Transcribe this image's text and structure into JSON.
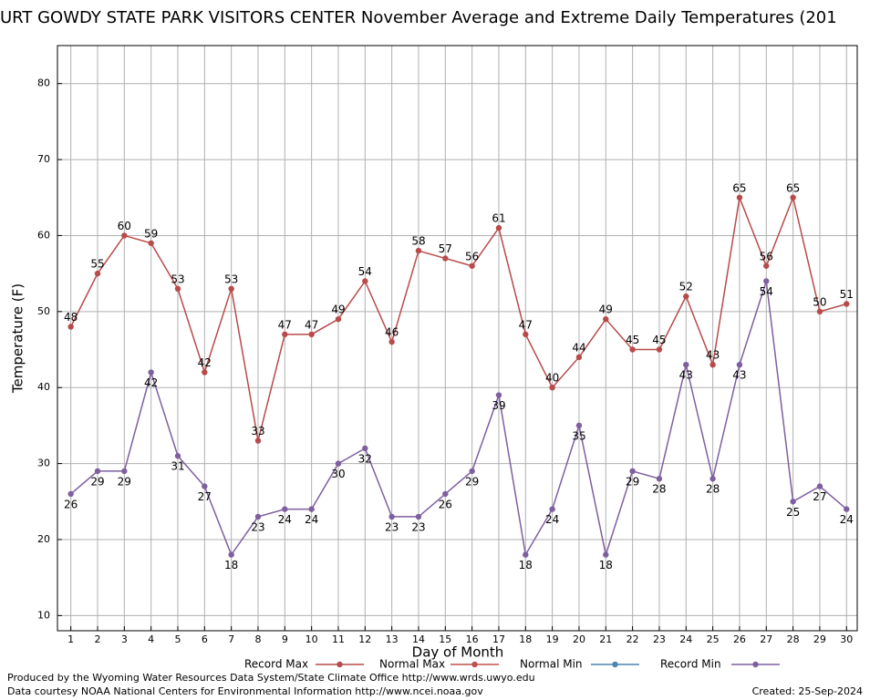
{
  "chart_data": {
    "type": "line",
    "title": "URT GOWDY STATE PARK VISITORS CENTER November Average and Extreme Daily Temperatures (201",
    "x_label": "Day of Month",
    "y_label": "Temperature (F)",
    "x": [
      1,
      2,
      3,
      4,
      5,
      6,
      7,
      8,
      9,
      10,
      11,
      12,
      13,
      14,
      15,
      16,
      17,
      18,
      19,
      20,
      21,
      22,
      23,
      24,
      25,
      26,
      27,
      28,
      29,
      30
    ],
    "xlim": [
      0.5,
      30.4
    ],
    "xticks": [
      1,
      2,
      3,
      4,
      5,
      6,
      7,
      8,
      9,
      10,
      11,
      12,
      13,
      14,
      15,
      16,
      17,
      18,
      19,
      20,
      21,
      22,
      23,
      24,
      25,
      26,
      27,
      28,
      29,
      30
    ],
    "ylim": [
      8,
      85
    ],
    "yticks": [
      10,
      20,
      30,
      40,
      50,
      60,
      70,
      80
    ],
    "grid": true,
    "series": [
      {
        "name": "Record Max",
        "color": "#b94a4a",
        "values": [
          48,
          55,
          60,
          59,
          53,
          42,
          53,
          33,
          47,
          47,
          49,
          54,
          46,
          58,
          57,
          56,
          61,
          47,
          40,
          44,
          49,
          45,
          45,
          52,
          43,
          65,
          56,
          65,
          50,
          51
        ]
      },
      {
        "name": "Normal Max",
        "color": "#c0504d",
        "values": [
          null,
          null,
          null,
          null,
          null,
          null,
          null,
          null,
          null,
          null,
          null,
          null,
          null,
          null,
          null,
          null,
          null,
          null,
          null,
          null,
          null,
          null,
          null,
          null,
          null,
          null,
          null,
          null,
          null,
          null
        ]
      },
      {
        "name": "Normal Min",
        "color": "#4a86b0",
        "values": [
          null,
          null,
          null,
          null,
          null,
          null,
          null,
          null,
          null,
          null,
          null,
          null,
          null,
          null,
          null,
          null,
          null,
          null,
          null,
          null,
          null,
          null,
          null,
          null,
          null,
          null,
          null,
          null,
          null,
          null
        ]
      },
      {
        "name": "Record Min",
        "color": "#7e5fa0",
        "values": [
          26,
          29,
          29,
          42,
          31,
          27,
          18,
          23,
          24,
          24,
          30,
          32,
          23,
          23,
          26,
          29,
          39,
          18,
          24,
          35,
          18,
          29,
          28,
          43,
          28,
          43,
          54,
          25,
          27,
          24
        ]
      }
    ],
    "footer": [
      "Produced by the Wyoming Water Resources Data System/State Climate Office http://www.wrds.uwyo.edu",
      "Data courtesy NOAA National Centers for Environmental Information http://www.ncei.noaa.gov"
    ],
    "created": "Created:  25-Sep-2024"
  }
}
